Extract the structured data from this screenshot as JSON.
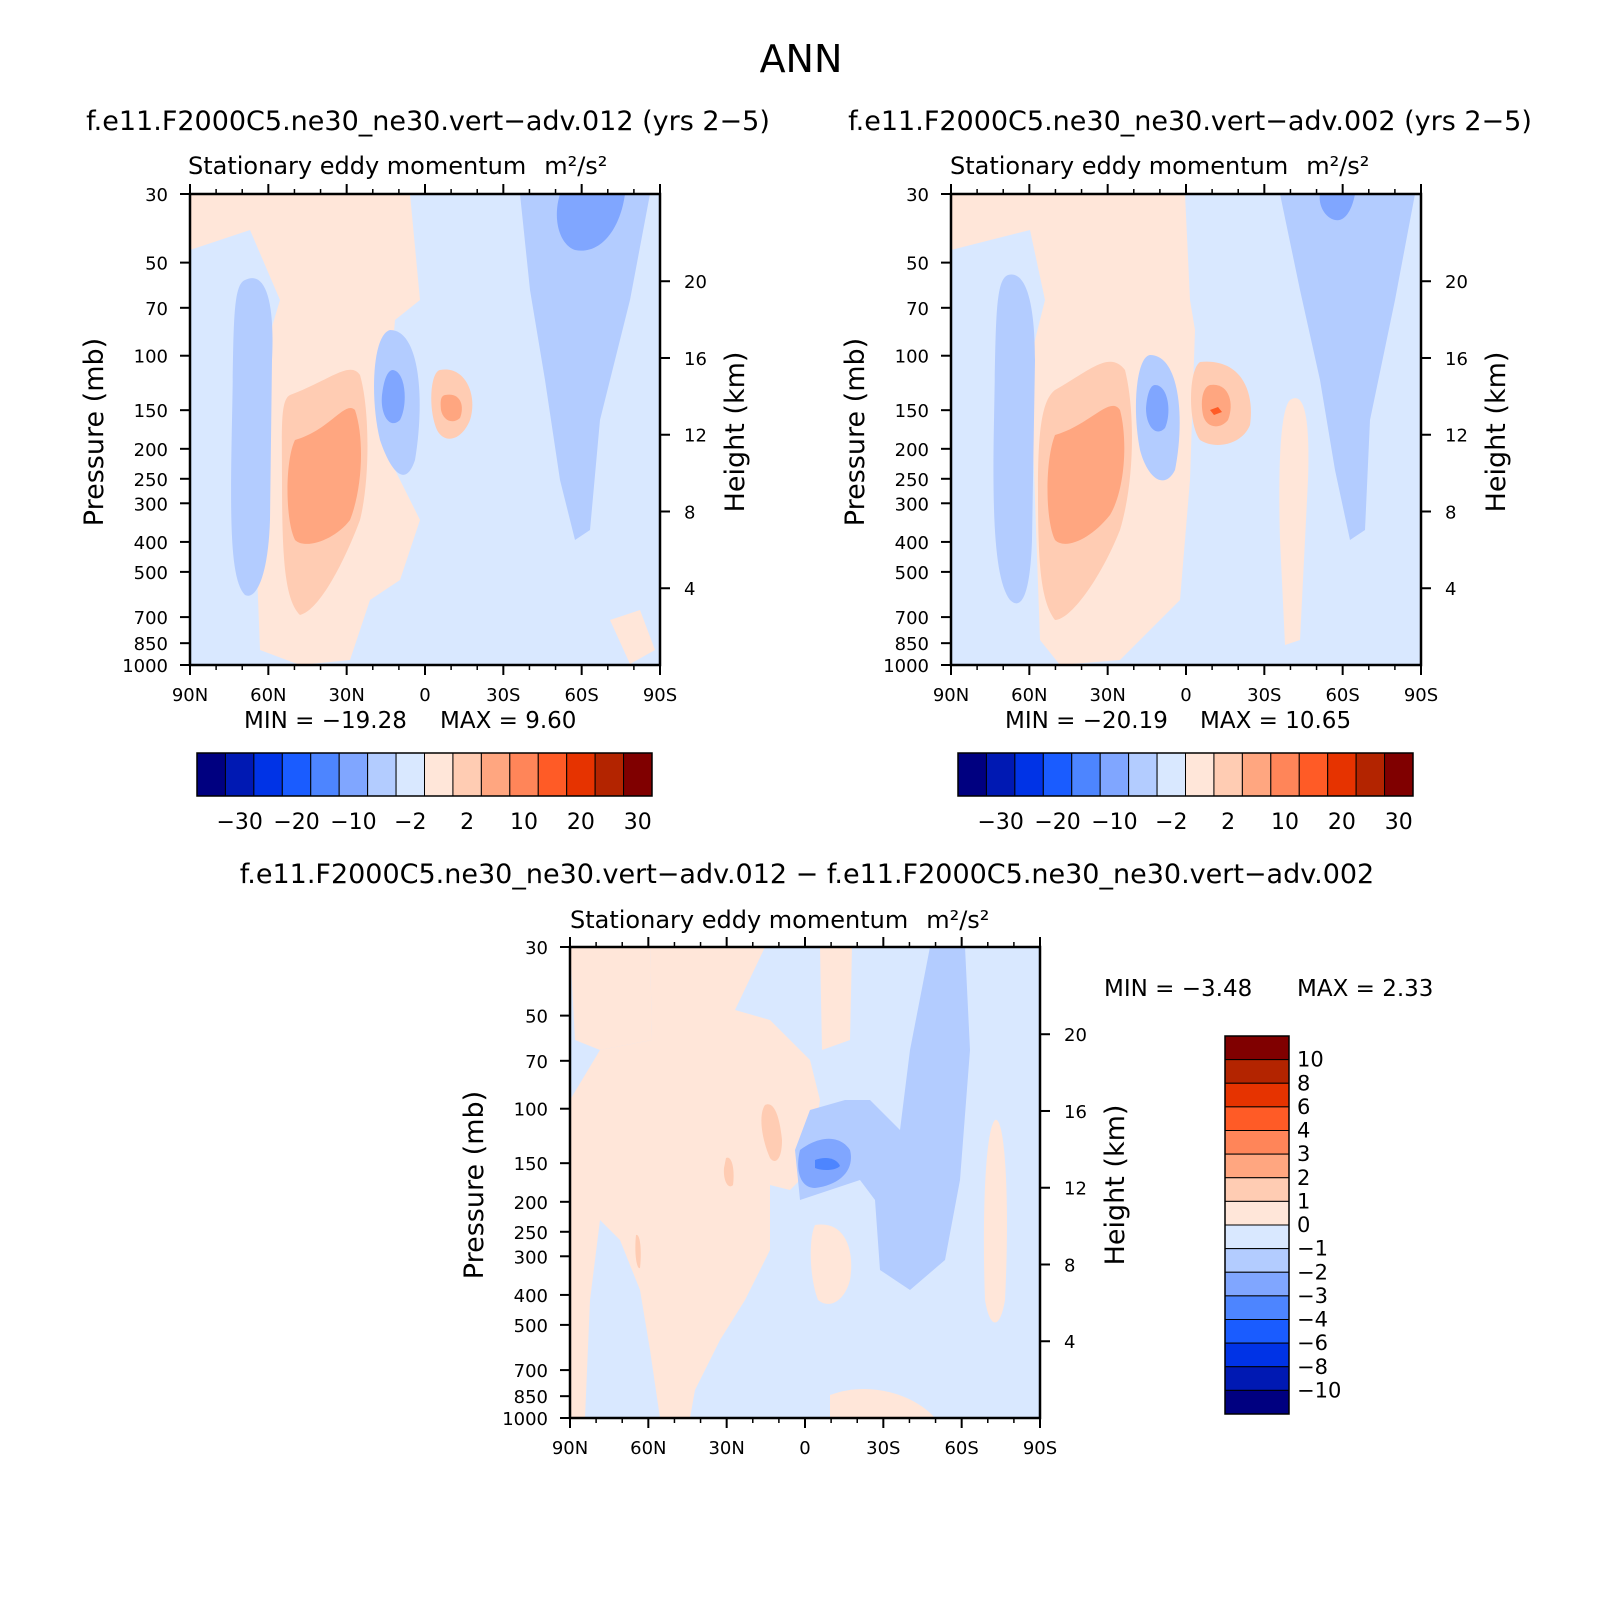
{
  "figure": {
    "title": "ANN",
    "diff_title": "f.e11.F2000C5.ne30_ne30.vert−adv.012 − f.e11.F2000C5.ne30_ne30.vert−adv.002"
  },
  "colors": {
    "main_scale": [
      "#000080",
      "#0019b3",
      "#0033e6",
      "#1a5cff",
      "#4d85ff",
      "#80a6ff",
      "#b3ccff",
      "#d9e8ff",
      "#ffe6d9",
      "#ffccb3",
      "#ffa680",
      "#ff8559",
      "#ff5b26",
      "#e63300",
      "#b32400",
      "#800000"
    ],
    "diff_scale": [
      "#000080",
      "#0019b3",
      "#0033e6",
      "#1a5cff",
      "#4d85ff",
      "#80a6ff",
      "#b3ccff",
      "#d9e8ff",
      "#ffe6d9",
      "#ffccb3",
      "#ffa680",
      "#ff8559",
      "#ff5b26",
      "#e63300",
      "#b32400",
      "#800000"
    ]
  },
  "chart_data": [
    {
      "type": "heatmap",
      "panel_title": "f.e11.F2000C5.ne30_ne30.vert−adv.012 (yrs 2−5)",
      "title": "Stationary eddy momentum",
      "units": "m²/s²",
      "xlabel": "",
      "ylabel": "Pressure (mb)",
      "y2label": "Height (km)",
      "xticks": [
        "90N",
        "60N",
        "30N",
        "0",
        "30S",
        "60S",
        "90S"
      ],
      "x_values": [
        90,
        60,
        30,
        0,
        -30,
        -60,
        -90
      ],
      "yticks": [
        "30",
        "50",
        "70",
        "100",
        "150",
        "200",
        "250",
        "300",
        "400",
        "500",
        "700",
        "850",
        "1000"
      ],
      "y_values": [
        30,
        50,
        70,
        100,
        150,
        200,
        250,
        300,
        400,
        500,
        700,
        850,
        1000
      ],
      "y2ticks": [
        "20",
        "16",
        "12",
        "8",
        "4"
      ],
      "min_label": "MIN = −19.28",
      "max_label": "MAX = 9.60",
      "min": -19.28,
      "max": 9.6,
      "colorbar_labels": [
        "−30",
        "−20",
        "−10",
        "−2",
        "2",
        "10",
        "20",
        "30"
      ]
    },
    {
      "type": "heatmap",
      "panel_title": "f.e11.F2000C5.ne30_ne30.vert−adv.002 (yrs 2−5)",
      "title": "Stationary eddy momentum",
      "units": "m²/s²",
      "xlabel": "",
      "ylabel": "Pressure (mb)",
      "y2label": "Height (km)",
      "xticks": [
        "90N",
        "60N",
        "30N",
        "0",
        "30S",
        "60S",
        "90S"
      ],
      "x_values": [
        90,
        60,
        30,
        0,
        -30,
        -60,
        -90
      ],
      "yticks": [
        "30",
        "50",
        "70",
        "100",
        "150",
        "200",
        "250",
        "300",
        "400",
        "500",
        "700",
        "850",
        "1000"
      ],
      "y_values": [
        30,
        50,
        70,
        100,
        150,
        200,
        250,
        300,
        400,
        500,
        700,
        850,
        1000
      ],
      "y2ticks": [
        "20",
        "16",
        "12",
        "8",
        "4"
      ],
      "min_label": "MIN = −20.19",
      "max_label": "MAX = 10.65",
      "min": -20.19,
      "max": 10.65,
      "colorbar_labels": [
        "−30",
        "−20",
        "−10",
        "−2",
        "2",
        "10",
        "20",
        "30"
      ]
    },
    {
      "type": "heatmap",
      "panel_title": "",
      "title": "Stationary eddy momentum",
      "units": "m²/s²",
      "xlabel": "",
      "ylabel": "Pressure (mb)",
      "y2label": "Height (km)",
      "xticks": [
        "90N",
        "60N",
        "30N",
        "0",
        "30S",
        "60S",
        "90S"
      ],
      "x_values": [
        90,
        60,
        30,
        0,
        -30,
        -60,
        -90
      ],
      "yticks": [
        "30",
        "50",
        "70",
        "100",
        "150",
        "200",
        "250",
        "300",
        "400",
        "500",
        "700",
        "850",
        "1000"
      ],
      "y_values": [
        30,
        50,
        70,
        100,
        150,
        200,
        250,
        300,
        400,
        500,
        700,
        850,
        1000
      ],
      "y2ticks": [
        "20",
        "16",
        "12",
        "8",
        "4"
      ],
      "min_label": "MIN = −3.48",
      "max_label": "MAX = 2.33",
      "min": -3.48,
      "max": 2.33,
      "colorbar_labels": [
        "10",
        "8",
        "6",
        "4",
        "3",
        "2",
        "1",
        "0",
        "−1",
        "−2",
        "−3",
        "−4",
        "−6",
        "−8",
        "−10"
      ]
    }
  ]
}
